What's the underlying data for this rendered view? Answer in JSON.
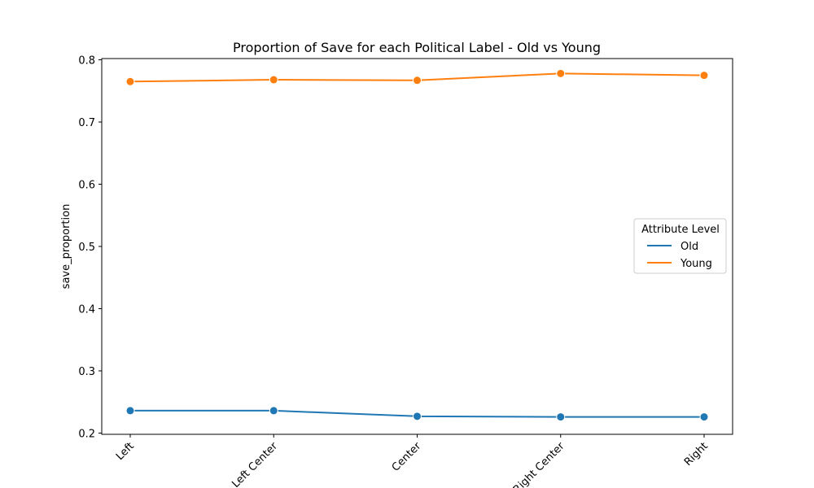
{
  "chart_data": {
    "type": "line",
    "title": "Proportion of Save for each Political Label - Old vs Young",
    "xlabel": "",
    "ylabel": "save_proportion",
    "categories": [
      "Left",
      "Left Center",
      "Center",
      "Right Center",
      "Right"
    ],
    "ylim": [
      0.198,
      0.802
    ],
    "yticks": [
      0.2,
      0.3,
      0.4,
      0.5,
      0.6,
      0.7,
      0.8
    ],
    "ytick_labels": [
      "0.2",
      "0.3",
      "0.4",
      "0.5",
      "0.6",
      "0.7",
      "0.8"
    ],
    "grid": false,
    "legend": {
      "title": "Attribute Level",
      "placement": "center-right"
    },
    "series": [
      {
        "name": "Old",
        "color": "#1f77b4",
        "values": [
          0.236,
          0.236,
          0.227,
          0.226,
          0.226
        ]
      },
      {
        "name": "Young",
        "color": "#ff7f0e",
        "values": [
          0.765,
          0.768,
          0.767,
          0.778,
          0.775
        ]
      }
    ]
  }
}
